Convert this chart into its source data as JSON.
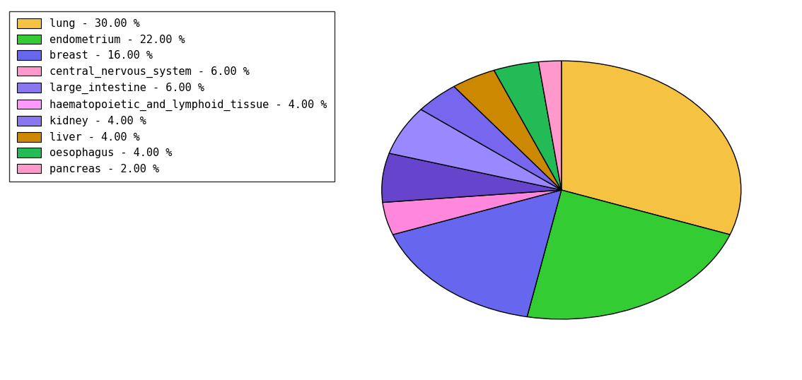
{
  "labels": [
    "lung",
    "endometrium",
    "breast",
    "central_nervous_system",
    "large_intestine",
    "haematopoietic_and_lymphoid_tissue",
    "kidney",
    "liver",
    "oesophagus",
    "pancreas"
  ],
  "sizes": [
    30.0,
    22.0,
    16.0,
    6.0,
    6.0,
    4.0,
    4.0,
    4.0,
    4.0,
    2.0
  ],
  "colors": [
    "#F5C242",
    "#33CC33",
    "#6666EE",
    "#FF99CC",
    "#8877EE",
    "#FF99FF",
    "#8877EE",
    "#CC8800",
    "#22BB55",
    "#FF99CC"
  ],
  "legend_labels": [
    "lung - 30.00 %",
    "endometrium - 22.00 %",
    "breast - 16.00 %",
    "central_nervous_system - 6.00 %",
    "large_intestine - 6.00 %",
    "haematopoietic_and_lymphoid_tissue - 4.00 %",
    "kidney - 4.00 %",
    "liver - 4.00 %",
    "oesophagus - 4.00 %",
    "pancreas - 2.00 %"
  ],
  "legend_colors": [
    "#F5C242",
    "#33CC33",
    "#6666EE",
    "#FF99CC",
    "#8877EE",
    "#FF99FF",
    "#8877EE",
    "#CC8800",
    "#22BB55",
    "#FF99CC"
  ],
  "startangle": 90,
  "figsize": [
    11.34,
    5.38
  ],
  "dpi": 100
}
